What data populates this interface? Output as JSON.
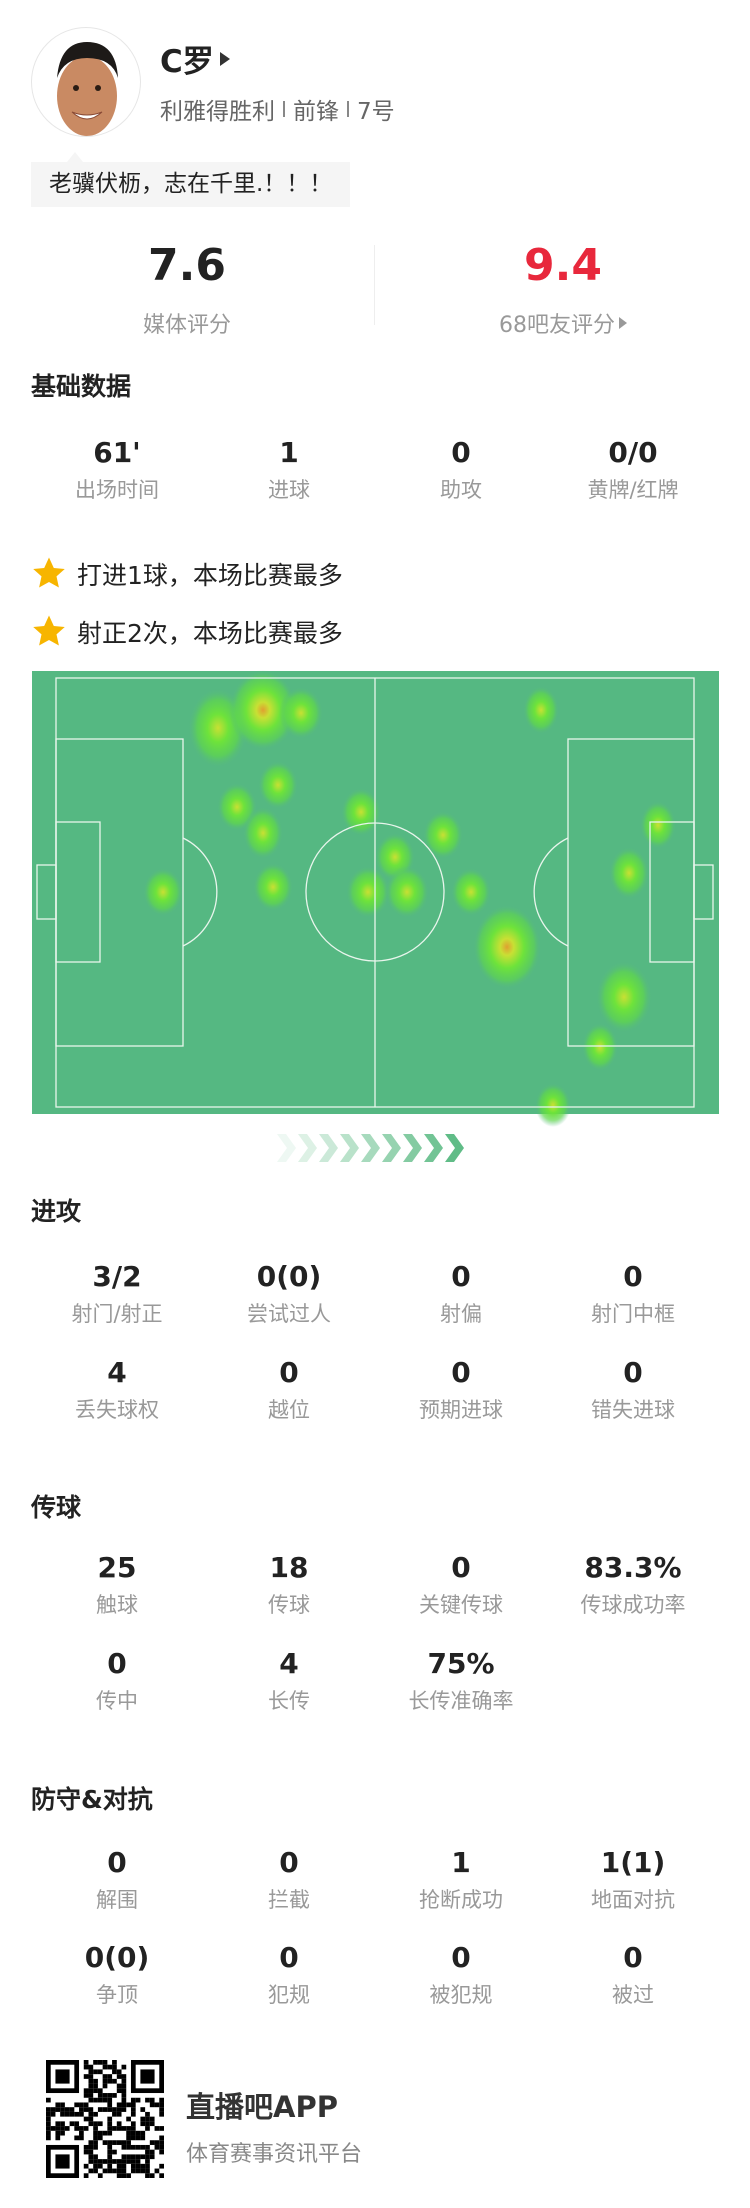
{
  "player": {
    "name": "C罗",
    "team": "利雅得胜利",
    "position": "前锋",
    "number": "7号",
    "quote": "老骥伏枥，志在千里.！！！"
  },
  "ratings": {
    "media": {
      "value": "7.6",
      "label": "媒体评分",
      "color": "#222222"
    },
    "fans": {
      "value": "9.4",
      "label": "68吧友评分",
      "color": "#e8283c"
    }
  },
  "basic": {
    "title": "基础数据",
    "stats": [
      {
        "value": "61'",
        "label": "出场时间"
      },
      {
        "value": "1",
        "label": "进球"
      },
      {
        "value": "0",
        "label": "助攻"
      },
      {
        "value": "0/0",
        "label": "黄牌/红牌"
      }
    ]
  },
  "highlights": [
    {
      "icon": "star-icon",
      "text": "打进1球，本场比赛最多"
    },
    {
      "icon": "star-icon",
      "text": "射正2次，本场比赛最多"
    }
  ],
  "heatmap": {
    "pitch_color": "#55b882",
    "line_color": "#e8f5ec"
  },
  "attack": {
    "title": "进攻",
    "stats": [
      {
        "value": "3/2",
        "label": "射门/射正"
      },
      {
        "value": "0(0)",
        "label": "尝试过人"
      },
      {
        "value": "0",
        "label": "射偏"
      },
      {
        "value": "0",
        "label": "射门中框"
      },
      {
        "value": "4",
        "label": "丢失球权"
      },
      {
        "value": "0",
        "label": "越位"
      },
      {
        "value": "0",
        "label": "预期进球"
      },
      {
        "value": "0",
        "label": "错失进球"
      }
    ]
  },
  "passing": {
    "title": "传球",
    "stats": [
      {
        "value": "25",
        "label": "触球"
      },
      {
        "value": "18",
        "label": "传球"
      },
      {
        "value": "0",
        "label": "关键传球"
      },
      {
        "value": "83.3%",
        "label": "传球成功率"
      },
      {
        "value": "0",
        "label": "传中"
      },
      {
        "value": "4",
        "label": "长传"
      },
      {
        "value": "75%",
        "label": "长传准确率"
      }
    ]
  },
  "defense": {
    "title": "防守&对抗",
    "stats": [
      {
        "value": "0",
        "label": "解围"
      },
      {
        "value": "0",
        "label": "拦截"
      },
      {
        "value": "1",
        "label": "抢断成功"
      },
      {
        "value": "1(1)",
        "label": "地面对抗"
      },
      {
        "value": "0(0)",
        "label": "争顶"
      },
      {
        "value": "0",
        "label": "犯规"
      },
      {
        "value": "0",
        "label": "被犯规"
      },
      {
        "value": "0",
        "label": "被过"
      }
    ]
  },
  "footer": {
    "app_name": "直播吧APP",
    "tagline": "体育赛事资讯平台"
  }
}
